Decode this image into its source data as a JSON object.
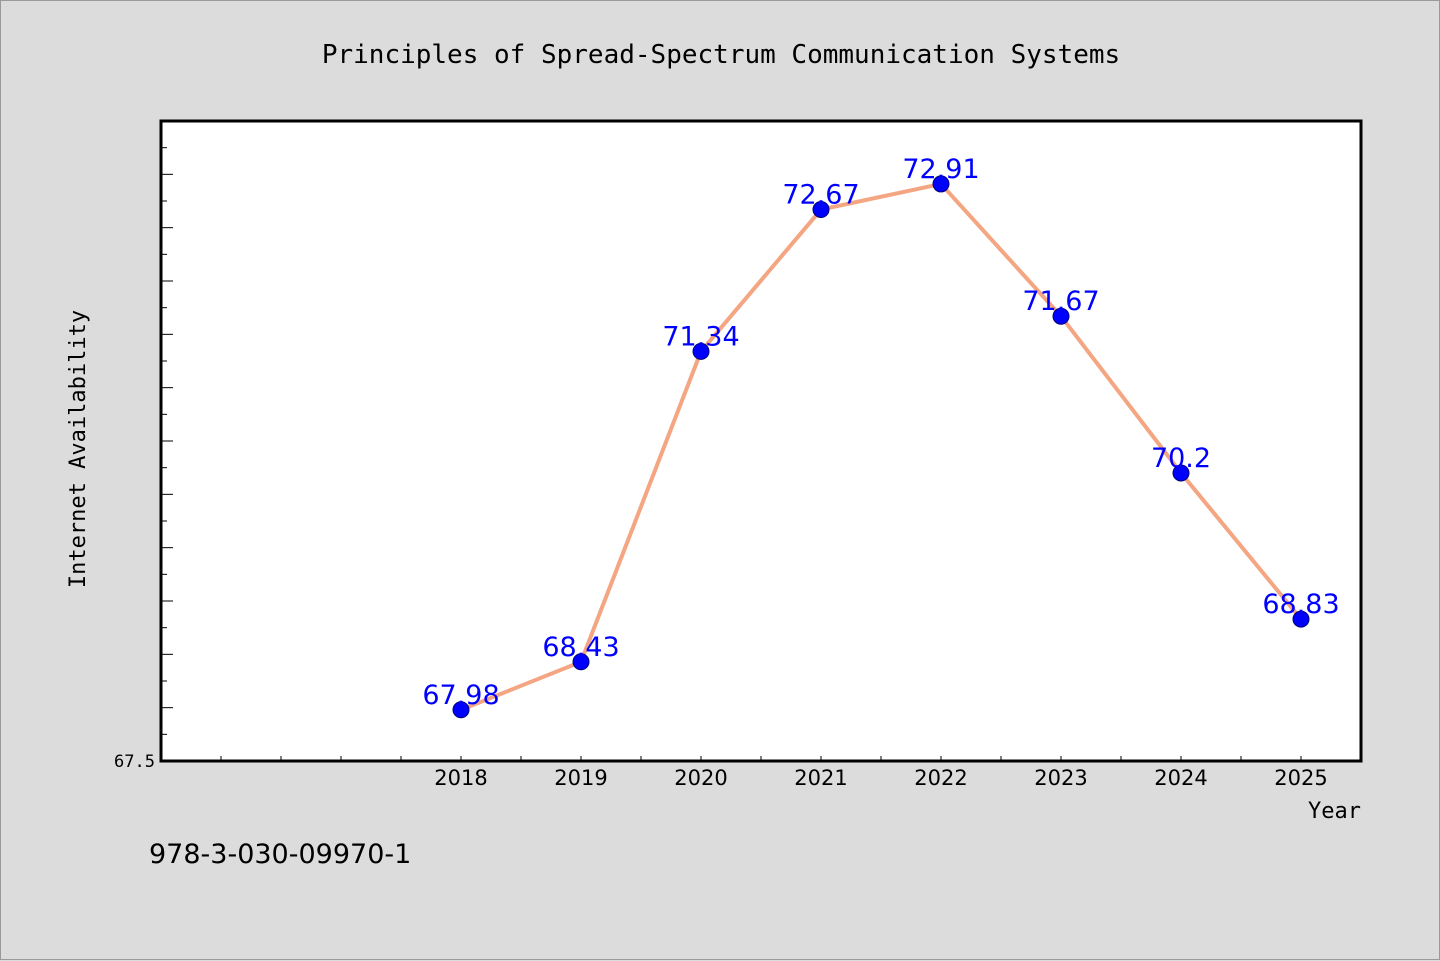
{
  "footer": {
    "isbn": "978-3-030-09970-1"
  },
  "colors": {
    "background": "#dcdcdc",
    "plot_background": "#ffffff",
    "line": "#f4a582",
    "marker": "#0000ff",
    "label": "#0000ff"
  },
  "chart_data": {
    "type": "line",
    "title": "Principles of Spread-Spectrum Communication Systems",
    "xlabel": "Year",
    "ylabel": "Internet Availability",
    "categories": [
      "2018",
      "2019",
      "2020",
      "2021",
      "2022",
      "2023",
      "2024",
      "2025"
    ],
    "values": [
      67.98,
      68.43,
      71.34,
      72.67,
      72.91,
      71.67,
      70.2,
      68.83
    ],
    "data_labels": [
      "67.98",
      "68.43",
      "71.34",
      "72.67",
      "72.91",
      "71.67",
      "70.2",
      "68.83"
    ],
    "y_tick_labels": [
      "67.5"
    ],
    "ylim": [
      67.5,
      73.5
    ],
    "grid": false,
    "legend": "none"
  }
}
